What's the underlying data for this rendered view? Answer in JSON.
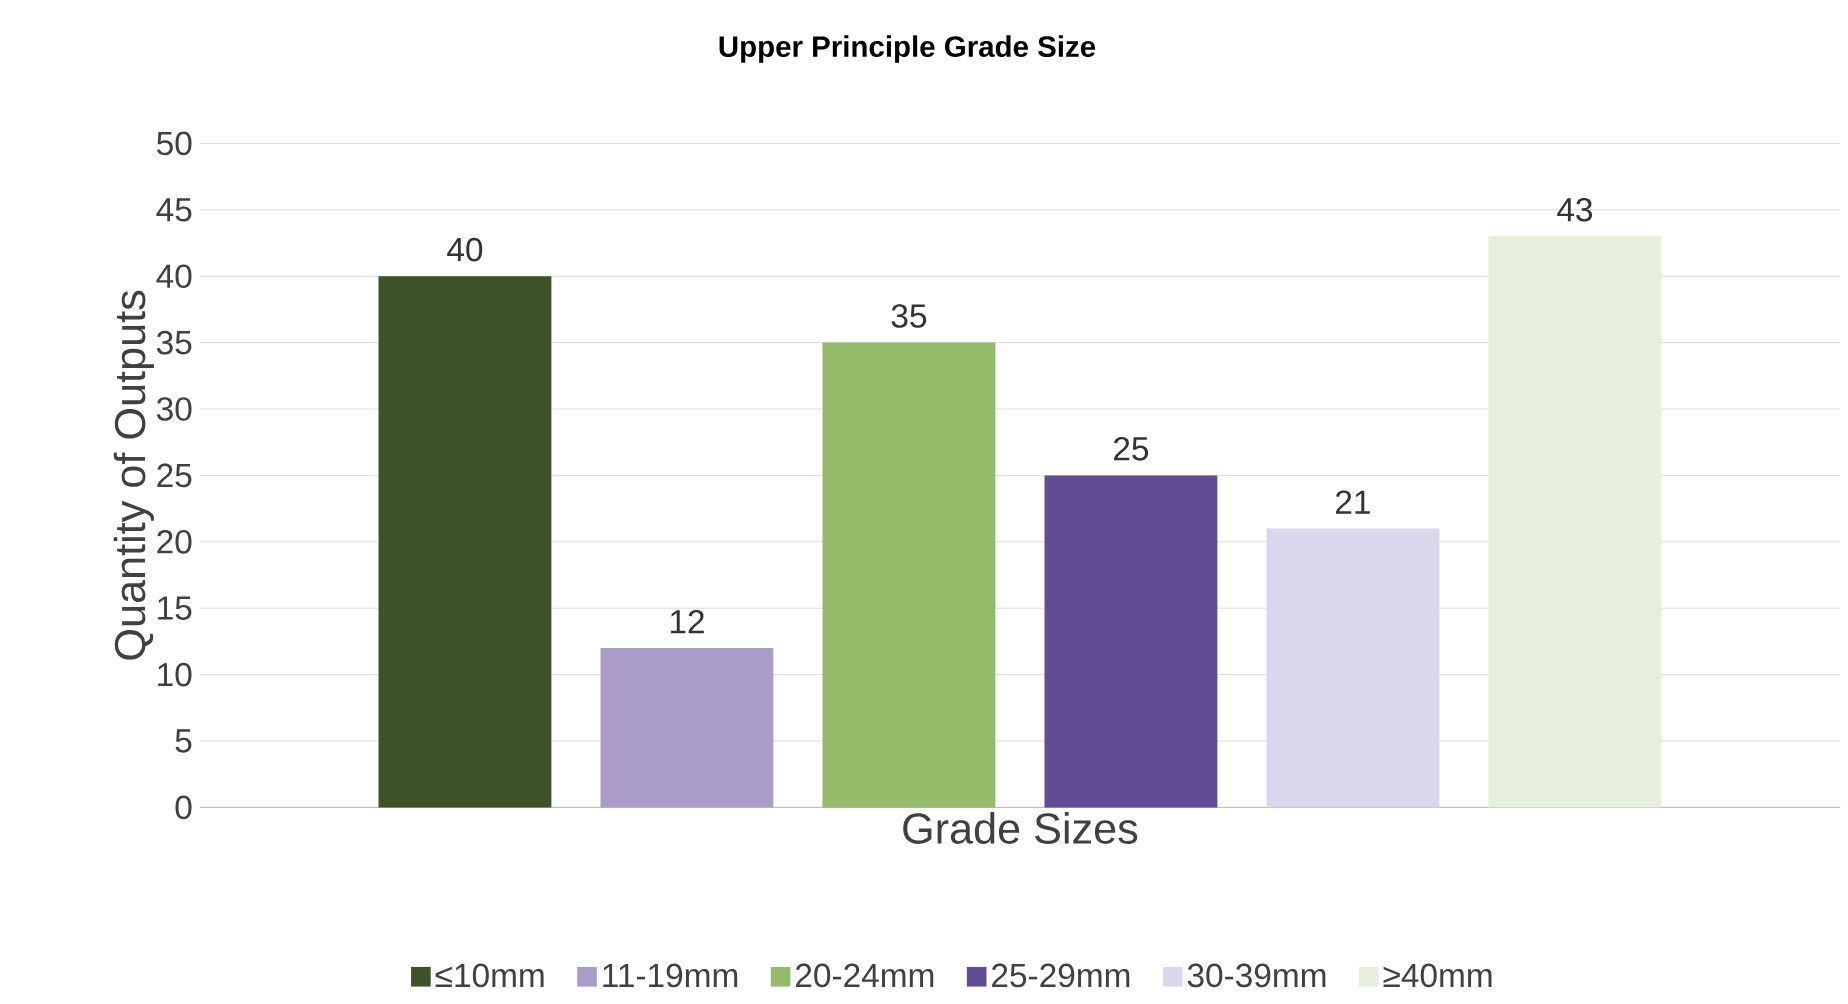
{
  "chart_data": {
    "type": "bar",
    "title": "Upper Principle Grade Size",
    "xlabel": "Grade Sizes",
    "ylabel": "Quantity of Outputs",
    "categories": [
      null
    ],
    "series": [
      {
        "name": "≤10mm",
        "color": "#3d5229",
        "values": [
          40
        ]
      },
      {
        "name": "11-19mm",
        "color": "#a99cc9",
        "values": [
          12
        ]
      },
      {
        "name": "20-24mm",
        "color": "#94bb6a",
        "values": [
          35
        ]
      },
      {
        "name": "25-29mm",
        "color": "#614c96",
        "values": [
          25
        ]
      },
      {
        "name": "30-39mm",
        "color": "#dcd6ec",
        "values": [
          21
        ]
      },
      {
        "name": "≥40mm",
        "color": "#e6efdc",
        "values": [
          43
        ]
      }
    ],
    "ylim": [
      0,
      50
    ],
    "yticks": [
      0,
      5,
      10,
      15,
      20,
      25,
      30,
      35,
      40,
      45,
      50
    ],
    "grid": "y",
    "legend": "bottom",
    "data_labels": true
  }
}
